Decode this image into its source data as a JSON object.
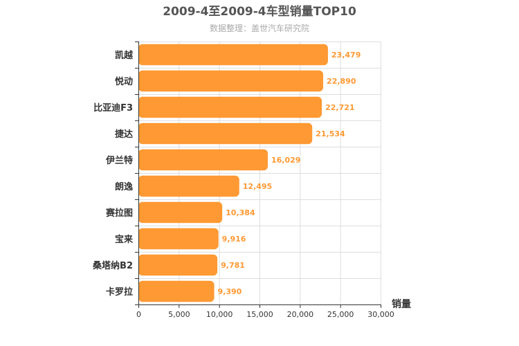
{
  "chart_data": {
    "type": "bar",
    "orientation": "horizontal",
    "title": "2009-4至2009-4车型销量TOP10",
    "subtitle": "数据整理：盖世汽车研究院",
    "xlabel": "销量",
    "ylabel": "",
    "categories": [
      "凯越",
      "悦动",
      "比亚迪F3",
      "捷达",
      "伊兰特",
      "朗逸",
      "赛拉图",
      "宝来",
      "桑塔纳B2",
      "卡罗拉"
    ],
    "values": [
      23479,
      22890,
      22721,
      21534,
      16029,
      12495,
      10384,
      9916,
      9781,
      9390
    ],
    "value_labels": [
      "23,479",
      "22,890",
      "22,721",
      "21,534",
      "16,029",
      "12,495",
      "10,384",
      "9,916",
      "9,781",
      "9,390"
    ],
    "xlim": [
      0,
      30000
    ],
    "xticks": [
      0,
      5000,
      10000,
      15000,
      20000,
      25000,
      30000
    ],
    "xtick_labels": [
      "0",
      "5,000",
      "10,000",
      "15,000",
      "20,000",
      "25,000",
      "30,000"
    ],
    "grid": true,
    "legend": "none",
    "bar_color": "#ff9933",
    "label_color": "#ff9933"
  }
}
